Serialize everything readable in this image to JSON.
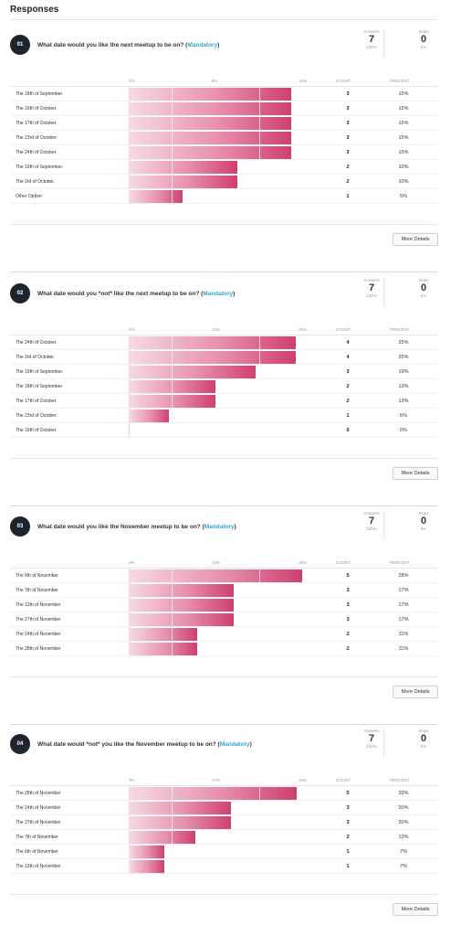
{
  "page": {
    "title": "Responses"
  },
  "labels": {
    "answers": "Answers",
    "skips": "Skips",
    "count": "COUNT",
    "percent": "PERCENT",
    "more_details": "More Details",
    "mandatory": "Mandatory"
  },
  "colors": {
    "bar_start": "#f6dae3",
    "bar_end": "#cf3f72",
    "mandatory": "#2fa3d6",
    "badge": "#1e2330"
  },
  "questions": [
    {
      "number": "01",
      "text_before": "What date would you like the next meetup to be on? (",
      "text_after": ")",
      "answers": "7",
      "answers_pct": "100%",
      "skips": "0",
      "skips_pct": "0%",
      "ticks": [
        "0%",
        "8%",
        "16%"
      ],
      "rows": [
        {
          "label": "The 18th of September",
          "count": "3",
          "percent": "15%",
          "value": 15
        },
        {
          "label": "The 16th of October.",
          "count": "3",
          "percent": "15%",
          "value": 15
        },
        {
          "label": "The 17th of October.",
          "count": "3",
          "percent": "15%",
          "value": 15
        },
        {
          "label": "The 23rd of October.",
          "count": "3",
          "percent": "15%",
          "value": 15
        },
        {
          "label": "The 24th of October.",
          "count": "3",
          "percent": "15%",
          "value": 15
        },
        {
          "label": "The 19th of September.",
          "count": "2",
          "percent": "10%",
          "value": 10
        },
        {
          "label": "The 3rd of October.",
          "count": "2",
          "percent": "10%",
          "value": 10
        },
        {
          "label": "Other Option",
          "count": "1",
          "percent": "5%",
          "value": 5
        }
      ],
      "axis_max": 16
    },
    {
      "number": "02",
      "text_before": "What date would you *not* like the next meetup to be on? (",
      "text_after": ")",
      "answers": "7",
      "answers_pct": "100%",
      "skips": "0",
      "skips_pct": "0%",
      "ticks": [
        "0%",
        "13%",
        "26%"
      ],
      "rows": [
        {
          "label": "The 24th of October.",
          "count": "4",
          "percent": "25%",
          "value": 25
        },
        {
          "label": "The 3rd of October.",
          "count": "4",
          "percent": "25%",
          "value": 25
        },
        {
          "label": "The 19th of September.",
          "count": "3",
          "percent": "19%",
          "value": 19
        },
        {
          "label": "The 18th of September",
          "count": "2",
          "percent": "13%",
          "value": 13
        },
        {
          "label": "The 17th of October.",
          "count": "2",
          "percent": "13%",
          "value": 13
        },
        {
          "label": "The 23rd of October.",
          "count": "1",
          "percent": "6%",
          "value": 6
        },
        {
          "label": "The 16th of October.",
          "count": "0",
          "percent": "0%",
          "value": 0
        }
      ],
      "axis_max": 26
    },
    {
      "number": "03",
      "text_before": "What date would you like the November meetup to be on? (",
      "text_after": ")",
      "answers": "7",
      "answers_pct": "100%",
      "skips": "0",
      "skips_pct": "0%",
      "ticks": [
        "0%",
        "14%",
        "28%"
      ],
      "rows": [
        {
          "label": "The 6th of November",
          "count": "5",
          "percent": "28%",
          "value": 28
        },
        {
          "label": "The 7th of November",
          "count": "3",
          "percent": "17%",
          "value": 17
        },
        {
          "label": "The 13th of November",
          "count": "3",
          "percent": "17%",
          "value": 17
        },
        {
          "label": "The 27th of November",
          "count": "3",
          "percent": "17%",
          "value": 17
        },
        {
          "label": "The 14th of November",
          "count": "2",
          "percent": "11%",
          "value": 11
        },
        {
          "label": "The 28th of November",
          "count": "2",
          "percent": "11%",
          "value": 11
        }
      ],
      "axis_max": 28
    },
    {
      "number": "04",
      "text_before": "What date would *not* you like the November meetup to be on? (",
      "text_after": ")",
      "answers": "7",
      "answers_pct": "100%",
      "skips": "0",
      "skips_pct": "0%",
      "ticks": [
        "0%",
        "17%",
        "34%"
      ],
      "rows": [
        {
          "label": "The 28th of November",
          "count": "5",
          "percent": "33%",
          "value": 33
        },
        {
          "label": "The 14th of November",
          "count": "3",
          "percent": "20%",
          "value": 20
        },
        {
          "label": "The 27th of November",
          "count": "3",
          "percent": "20%",
          "value": 20
        },
        {
          "label": "The 7th of November",
          "count": "2",
          "percent": "13%",
          "value": 13
        },
        {
          "label": "The 6th of November",
          "count": "1",
          "percent": "7%",
          "value": 7
        },
        {
          "label": "The 13th of November",
          "count": "1",
          "percent": "7%",
          "value": 7
        }
      ],
      "axis_max": 34
    }
  ]
}
